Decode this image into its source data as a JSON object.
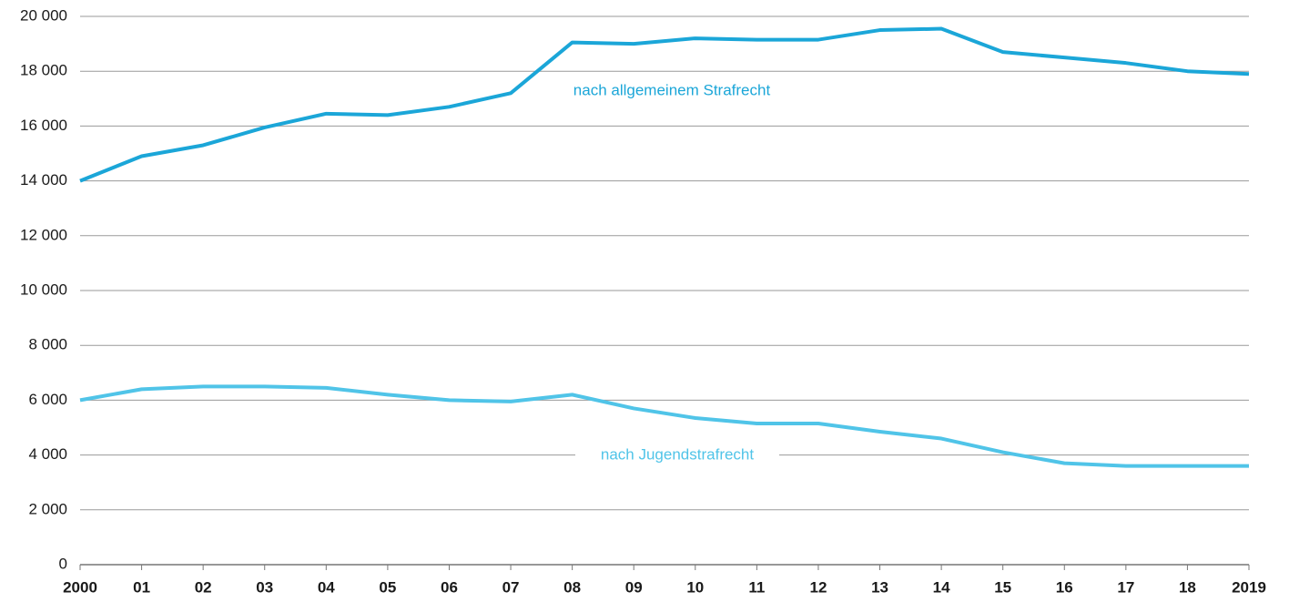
{
  "chart_data": {
    "type": "line",
    "categories": [
      "2000",
      "01",
      "02",
      "03",
      "04",
      "05",
      "06",
      "07",
      "08",
      "09",
      "10",
      "11",
      "12",
      "13",
      "14",
      "15",
      "16",
      "17",
      "18",
      "2019"
    ],
    "series": [
      {
        "name": "nach allgemeinem Strafrecht",
        "color": "#1ba6d8",
        "values": [
          14000,
          14900,
          15300,
          15950,
          16450,
          16400,
          16700,
          17200,
          19050,
          19000,
          19200,
          19150,
          19150,
          19500,
          19550,
          18700,
          18500,
          18300,
          18000,
          17900
        ]
      },
      {
        "name": "nach Jugendstrafrecht",
        "color": "#50c4e8",
        "values": [
          6000,
          6400,
          6500,
          6500,
          6450,
          6200,
          6000,
          5950,
          6200,
          5700,
          5350,
          5150,
          5150,
          4850,
          4600,
          4100,
          3700,
          3600,
          3600,
          3600
        ]
      }
    ],
    "ylim": [
      0,
      20000
    ],
    "yticks": [
      0,
      {
        "value": 2000,
        "label": "2 000"
      },
      {
        "value": 4000,
        "label": "4 000"
      },
      {
        "value": 6000,
        "label": "6 000"
      },
      {
        "value": 8000,
        "label": "8 000"
      },
      {
        "value": 10000,
        "label": "10 000"
      },
      {
        "value": 12000,
        "label": "12 000"
      },
      {
        "value": 14000,
        "label": "14 000"
      },
      {
        "value": 16000,
        "label": "16 000"
      },
      {
        "value": 18000,
        "label": "18 000"
      },
      {
        "value": 20000,
        "label": "20 000"
      }
    ],
    "grid": true
  }
}
